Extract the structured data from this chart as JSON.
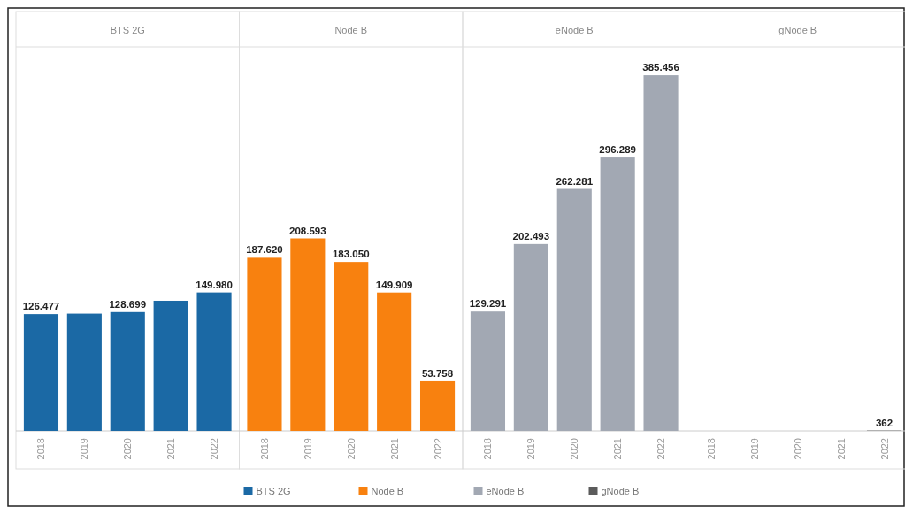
{
  "chart_data": {
    "type": "bar",
    "categories": [
      "2018",
      "2019",
      "2020",
      "2021",
      "2022",
      "2018",
      "2019",
      "2020",
      "2021",
      "2022",
      "2018",
      "2019",
      "2020",
      "2021",
      "2022",
      "2018",
      "2019",
      "2020",
      "2021",
      "2022"
    ],
    "legend": "bottom",
    "annotations": [
      "BTS 2G",
      "Node B",
      "eNode B",
      "gNode B"
    ],
    "series": [
      {
        "name": "BTS 2G",
        "color": "#1b69a5",
        "values": [
          126477,
          127000,
          128699,
          141000,
          149980,
          null,
          null,
          null,
          null,
          null,
          null,
          null,
          null,
          null,
          null,
          null,
          null,
          null,
          null,
          null
        ],
        "value_labels": [
          "126.477",
          null,
          "128.699",
          null,
          "149.980",
          null,
          null,
          null,
          null,
          null,
          null,
          null,
          null,
          null,
          null,
          null,
          null,
          null,
          null,
          null
        ]
      },
      {
        "name": "Node B",
        "color": "#f8810f",
        "values": [
          null,
          null,
          null,
          null,
          null,
          187620,
          208593,
          183050,
          149909,
          53758,
          null,
          null,
          null,
          null,
          null,
          null,
          null,
          null,
          null,
          null
        ],
        "value_labels": [
          null,
          null,
          null,
          null,
          null,
          "187.620",
          "208.593",
          "183.050",
          "149.909",
          "53.758",
          null,
          null,
          null,
          null,
          null,
          null,
          null,
          null,
          null,
          null
        ]
      },
      {
        "name": "eNode B",
        "color": "#a2a8b3",
        "values": [
          null,
          null,
          null,
          null,
          null,
          null,
          null,
          null,
          null,
          null,
          129291,
          202493,
          262281,
          296289,
          385456,
          null,
          null,
          null,
          null,
          null
        ],
        "value_labels": [
          null,
          null,
          null,
          null,
          null,
          null,
          null,
          null,
          null,
          null,
          "129.291",
          "202.493",
          "262.281",
          "296.289",
          "385.456",
          null,
          null,
          null,
          null,
          null
        ]
      },
      {
        "name": "gNode B",
        "color": "#5b5b5b",
        "values": [
          null,
          null,
          null,
          null,
          null,
          null,
          null,
          null,
          null,
          null,
          null,
          null,
          null,
          null,
          null,
          0,
          0,
          0,
          0,
          362
        ],
        "value_labels": [
          null,
          null,
          null,
          null,
          null,
          null,
          null,
          null,
          null,
          null,
          null,
          null,
          null,
          null,
          null,
          null,
          null,
          null,
          null,
          "362"
        ]
      }
    ]
  }
}
